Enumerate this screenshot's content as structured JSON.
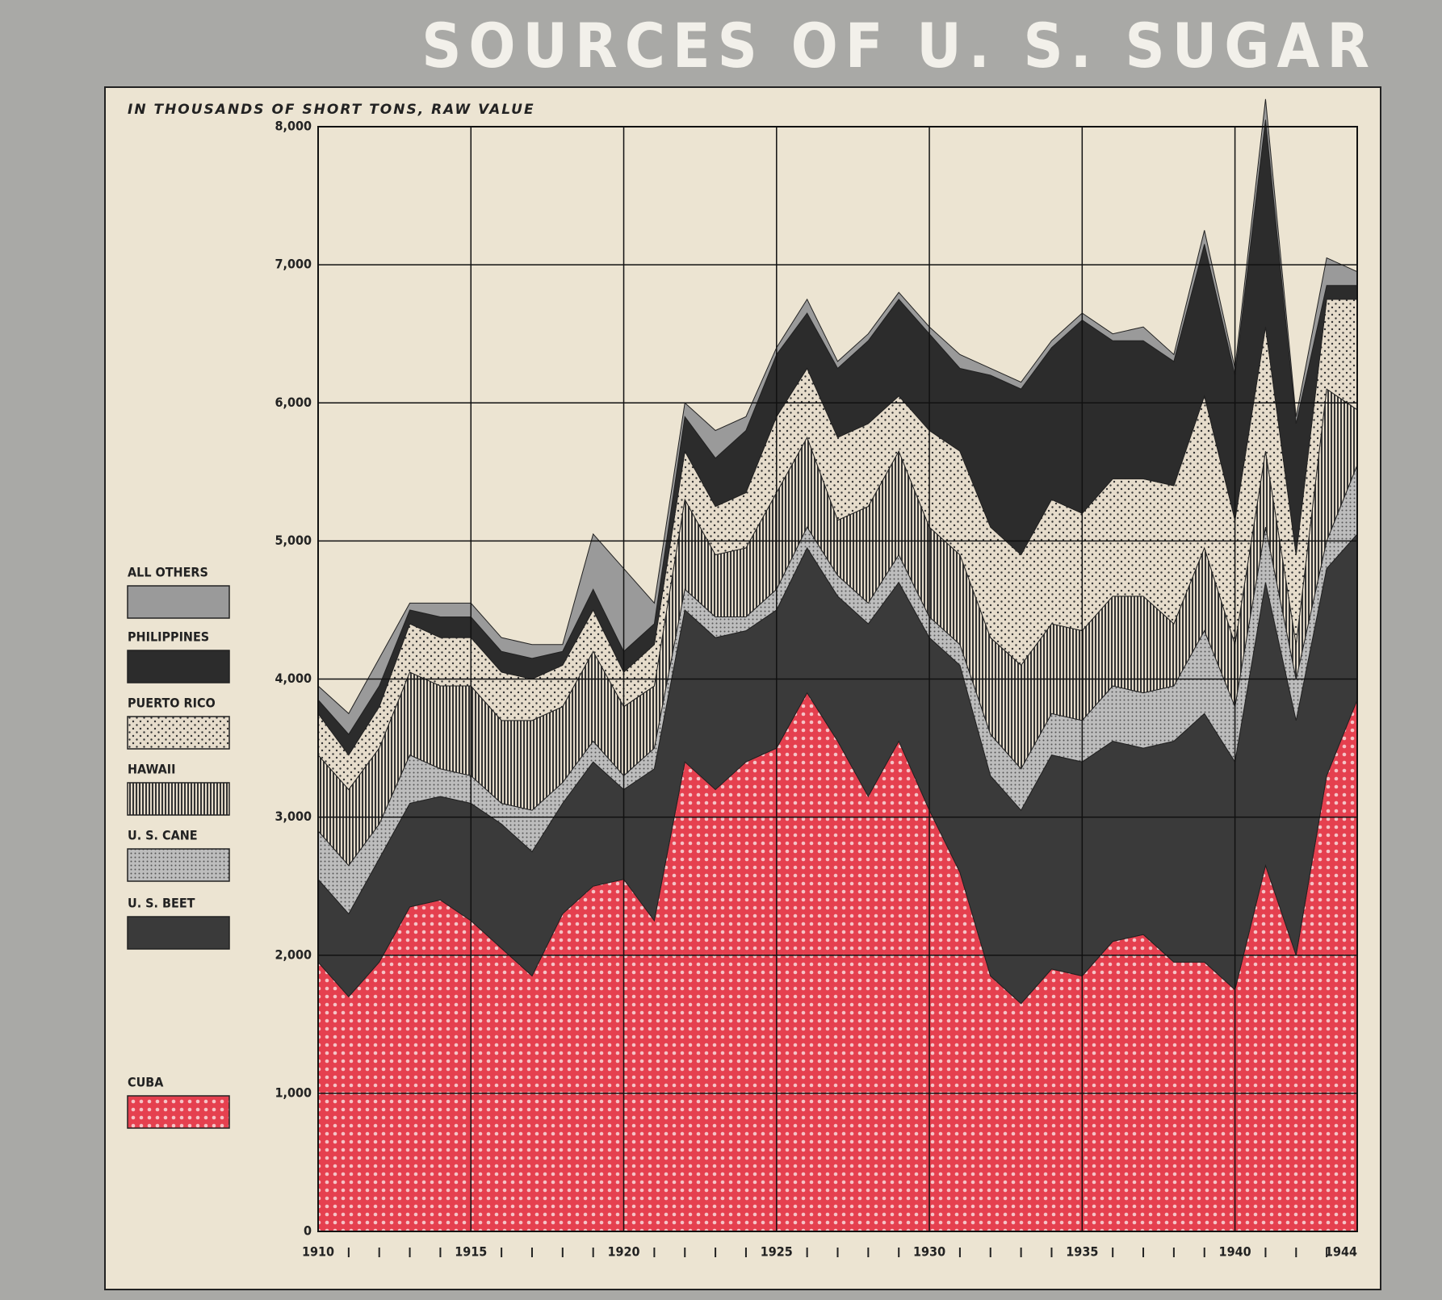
{
  "chart_data": {
    "type": "stacked_area",
    "title": "SOURCES OF U. S. SUGAR",
    "y_label": "IN THOUSANDS OF SHORT TONS, RAW VALUE",
    "x": [
      1910,
      1911,
      1912,
      1913,
      1914,
      1915,
      1916,
      1917,
      1918,
      1919,
      1920,
      1921,
      1922,
      1923,
      1924,
      1925,
      1926,
      1927,
      1928,
      1929,
      1930,
      1931,
      1932,
      1933,
      1934,
      1935,
      1936,
      1937,
      1938,
      1939,
      1940,
      1941,
      1942,
      1943,
      1944
    ],
    "xlim": [
      1910,
      1944
    ],
    "xticks": [
      1910,
      1915,
      1920,
      1925,
      1930,
      1935,
      1940,
      1944
    ],
    "ylim": [
      0,
      8000
    ],
    "yticks": [
      0,
      {
        "value": 1000,
        "label": "1,000"
      },
      {
        "value": 2000,
        "label": "2,000"
      },
      {
        "value": 3000,
        "label": "3,000"
      },
      {
        "value": 4000,
        "label": "4,000"
      },
      {
        "value": 5000,
        "label": "5,000"
      },
      {
        "value": 6000,
        "label": "6,000"
      },
      {
        "value": 7000,
        "label": "7,000"
      },
      {
        "value": 8000,
        "label": "8,000"
      }
    ],
    "grid": true,
    "series": [
      {
        "name": "CUBA",
        "color": "#e5404f",
        "values": [
          1950,
          1700,
          1950,
          2350,
          2400,
          2250,
          2050,
          1850,
          2300,
          2500,
          2550,
          2250,
          3400,
          3200,
          3400,
          3500,
          3900,
          3550,
          3150,
          3550,
          3050,
          2600,
          1850,
          1650,
          1900,
          1850,
          2100,
          2150,
          1950,
          1950,
          1750,
          2650,
          2000,
          3300,
          3850
        ]
      },
      {
        "name": "U. S. BEET",
        "color": "#3a3a3a",
        "values": [
          600,
          600,
          750,
          750,
          750,
          850,
          900,
          900,
          800,
          900,
          650,
          1100,
          1100,
          1100,
          950,
          1000,
          1050,
          1050,
          1250,
          1150,
          1250,
          1500,
          1450,
          1400,
          1550,
          1550,
          1450,
          1350,
          1600,
          1800,
          1650,
          2050,
          1700,
          1500,
          1200
        ]
      },
      {
        "name": "U. S. CANE",
        "color": "#bdbdbd",
        "values": [
          350,
          350,
          250,
          350,
          200,
          200,
          150,
          300,
          150,
          150,
          100,
          150,
          150,
          150,
          100,
          150,
          150,
          150,
          150,
          200,
          150,
          150,
          300,
          300,
          300,
          300,
          400,
          400,
          400,
          600,
          400,
          400,
          300,
          200,
          500
        ]
      },
      {
        "name": "HAWAII",
        "color": "#6a6a6a",
        "values": [
          550,
          550,
          550,
          600,
          600,
          650,
          600,
          650,
          550,
          650,
          500,
          450,
          650,
          450,
          500,
          700,
          650,
          400,
          700,
          750,
          650,
          650,
          700,
          750,
          650,
          650,
          650,
          700,
          450,
          600,
          450,
          550,
          250,
          1100,
          400
        ]
      },
      {
        "name": "PUERTO RICO",
        "color": "#e6dccb",
        "values": [
          300,
          250,
          300,
          350,
          350,
          350,
          350,
          300,
          300,
          300,
          250,
          300,
          350,
          350,
          400,
          550,
          500,
          600,
          600,
          400,
          700,
          750,
          800,
          800,
          900,
          850,
          850,
          850,
          1000,
          1100,
          900,
          900,
          650,
          650,
          800
        ]
      },
      {
        "name": "PHILIPPINES",
        "color": "#2c2c2c",
        "values": [
          100,
          150,
          150,
          100,
          150,
          150,
          150,
          150,
          100,
          150,
          150,
          150,
          250,
          350,
          450,
          450,
          400,
          500,
          600,
          700,
          700,
          600,
          1100,
          1200,
          1100,
          1400,
          1000,
          1000,
          900,
          1100,
          1050,
          1500,
          950,
          100,
          100
        ]
      },
      {
        "name": "ALL OTHERS",
        "color": "#9a9a9a",
        "values": [
          100,
          150,
          200,
          50,
          100,
          100,
          100,
          100,
          50,
          400,
          600,
          150,
          100,
          200,
          100,
          50,
          100,
          50,
          50,
          50,
          50,
          100,
          50,
          50,
          50,
          50,
          50,
          100,
          50,
          100,
          50,
          150,
          50,
          200,
          100
        ]
      }
    ]
  }
}
